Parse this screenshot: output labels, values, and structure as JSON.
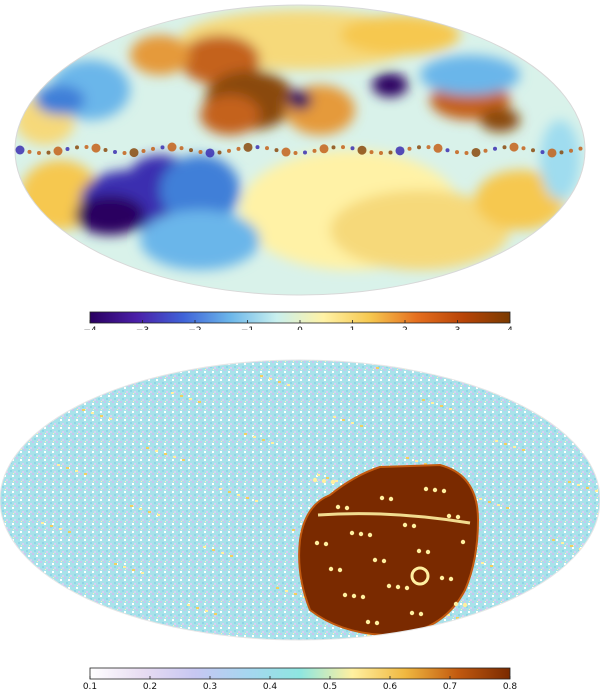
{
  "chart_data": [
    {
      "type": "heatmap",
      "projection": "mollweide",
      "colorbar": {
        "min": -4,
        "max": 4,
        "ticks": [
          -4,
          -3,
          -2,
          -1,
          0,
          1,
          2,
          3,
          4
        ],
        "tick_labels": [
          "−4",
          "−3",
          "−2",
          "−1",
          "0",
          "1",
          "2",
          "3",
          "4"
        ],
        "colormap": [
          "#2a0060",
          "#4b1fa8",
          "#3f63d8",
          "#6bb6ea",
          "#c9f0ee",
          "#fff2a6",
          "#f6c850",
          "#e56f1f",
          "#b84407",
          "#7a3a00"
        ]
      },
      "features": {
        "galactic_plane_band": true,
        "dominant_low_region": "lower-left",
        "dominant_high_region": "upper-center"
      }
    },
    {
      "type": "heatmap",
      "projection": "mollweide",
      "colorbar": {
        "min": 0.1,
        "max": 0.8,
        "ticks": [
          0.1,
          0.2,
          0.3,
          0.4,
          0.5,
          0.6,
          0.7,
          0.8
        ],
        "tick_labels": [
          "0.1",
          "0.2",
          "0.3",
          "0.4",
          "0.5",
          "0.6",
          "0.7",
          "0.8"
        ],
        "colormap": [
          "#ffffff",
          "#e8dcf2",
          "#c7c7f2",
          "#a6d6f0",
          "#8ee6e0",
          "#fff0a0",
          "#f0b840",
          "#c25a10",
          "#7a2a00"
        ]
      },
      "features": {
        "dominant_high_region": "lower-right"
      }
    }
  ]
}
